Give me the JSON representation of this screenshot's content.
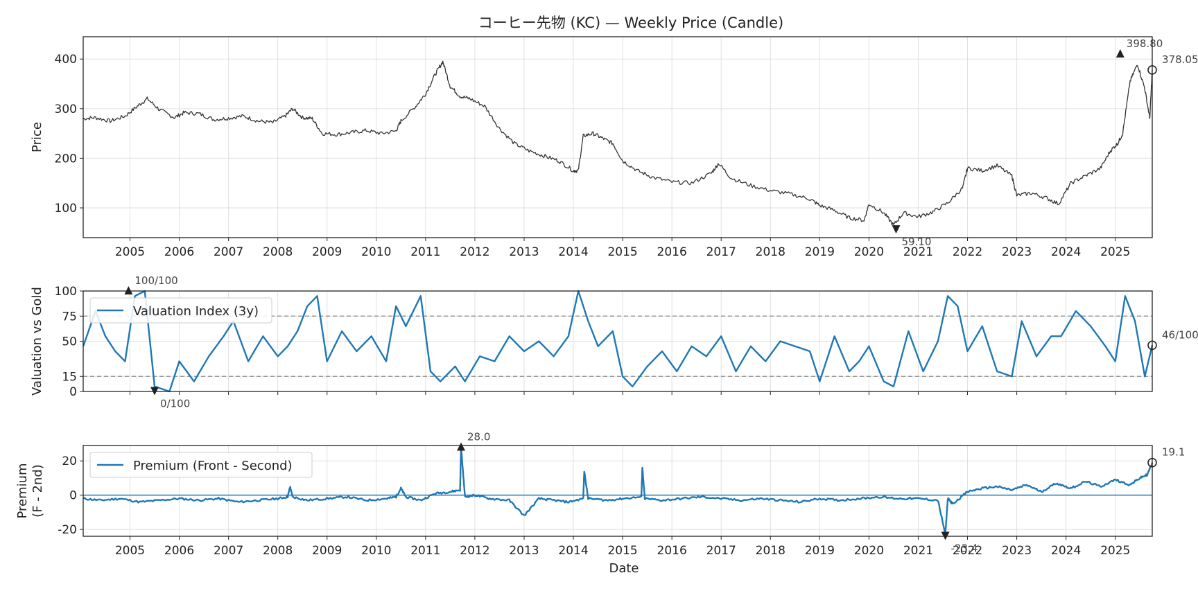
{
  "colors": {
    "price": "#333333",
    "blue": "#1f77b4",
    "grid": "#e0e0e0",
    "ref": "#999999",
    "marker": "#222222"
  },
  "chart_data": [
    {
      "type": "line",
      "title": "コーヒー先物 (KC) — Weekly Price (Candle)",
      "ylabel": "Price",
      "ylim": [
        40,
        445
      ],
      "yticks": [
        100,
        200,
        300,
        400
      ],
      "xlim": [
        2004.05,
        2025.75
      ],
      "xticks": [
        "2005",
        "2006",
        "2007",
        "2008",
        "2009",
        "2010",
        "2011",
        "2012",
        "2013",
        "2014",
        "2015",
        "2016",
        "2017",
        "2018",
        "2019",
        "2020",
        "2021",
        "2022",
        "2023",
        "2024",
        "2025"
      ],
      "grid": true,
      "series": [
        {
          "x": [
            2004.05,
            2004.3,
            2004.6,
            2004.9,
            2005.15,
            2005.35,
            2005.6,
            2005.9,
            2006.1,
            2006.4,
            2006.7,
            2007.0,
            2007.3,
            2007.6,
            2007.9,
            2008.15,
            2008.3,
            2008.5,
            2008.7,
            2008.9,
            2009.2,
            2009.5,
            2009.8,
            2010.1,
            2010.4,
            2010.5,
            2010.8,
            2011.0,
            2011.2,
            2011.35,
            2011.5,
            2011.7,
            2011.9,
            2012.2,
            2012.5,
            2012.8,
            2013.1,
            2013.4,
            2013.7,
            2014.0,
            2014.1,
            2014.2,
            2014.4,
            2014.6,
            2014.8,
            2015.0,
            2015.3,
            2015.6,
            2016.0,
            2016.4,
            2016.8,
            2016.95,
            2017.2,
            2017.6,
            2018.0,
            2018.4,
            2018.8,
            2019.0,
            2019.3,
            2019.6,
            2019.9,
            2020.0,
            2020.3,
            2020.5,
            2020.7,
            2021.0,
            2021.3,
            2021.6,
            2021.9,
            2022.0,
            2022.3,
            2022.6,
            2022.9,
            2023.0,
            2023.3,
            2023.6,
            2023.85,
            2024.1,
            2024.4,
            2024.7,
            2024.9,
            2025.05,
            2025.15,
            2025.3,
            2025.45,
            2025.6,
            2025.7,
            2025.75
          ],
          "y": [
            280,
            282,
            275,
            285,
            305,
            320,
            298,
            282,
            292,
            290,
            278,
            281,
            285,
            275,
            272,
            285,
            300,
            282,
            280,
            250,
            248,
            252,
            256,
            250,
            255,
            275,
            305,
            330,
            370,
            395,
            345,
            325,
            320,
            305,
            260,
            230,
            215,
            205,
            195,
            175,
            175,
            245,
            250,
            240,
            230,
            195,
            175,
            162,
            152,
            150,
            170,
            190,
            160,
            145,
            135,
            128,
            118,
            105,
            95,
            80,
            75,
            108,
            90,
            65,
            90,
            82,
            92,
            110,
            140,
            180,
            175,
            185,
            165,
            125,
            130,
            120,
            108,
            150,
            165,
            180,
            215,
            230,
            250,
            355,
            390,
            340,
            280,
            378
          ]
        }
      ],
      "annotations": [
        {
          "label": "398.80",
          "x": 2025.1,
          "y": 410,
          "marker": "max"
        },
        {
          "label": "59.10",
          "x": 2020.55,
          "y": 58,
          "marker": "min"
        },
        {
          "label": "378.05",
          "x": 2025.75,
          "y": 378,
          "marker": "last"
        }
      ]
    },
    {
      "type": "line",
      "ylabel": "Valuation vs Gold",
      "ylim": [
        0,
        100
      ],
      "yticks": [
        0,
        15,
        50,
        75,
        100
      ],
      "reference_lines": [
        15,
        75
      ],
      "legend": "top-left",
      "series": [
        {
          "name": "Valuation Index (3y)",
          "x": [
            2004.05,
            2004.3,
            2004.5,
            2004.7,
            2004.9,
            2005.1,
            2005.3,
            2005.5,
            2005.8,
            2006.0,
            2006.3,
            2006.6,
            2006.9,
            2007.1,
            2007.4,
            2007.7,
            2008.0,
            2008.2,
            2008.4,
            2008.6,
            2008.8,
            2009.0,
            2009.3,
            2009.6,
            2009.9,
            2010.2,
            2010.4,
            2010.6,
            2010.9,
            2011.1,
            2011.3,
            2011.6,
            2011.8,
            2012.1,
            2012.4,
            2012.7,
            2013.0,
            2013.3,
            2013.6,
            2013.9,
            2014.1,
            2014.3,
            2014.5,
            2014.8,
            2015.0,
            2015.2,
            2015.5,
            2015.8,
            2016.1,
            2016.4,
            2016.7,
            2017.0,
            2017.3,
            2017.6,
            2017.9,
            2018.2,
            2018.5,
            2018.8,
            2019.0,
            2019.3,
            2019.6,
            2019.8,
            2020.0,
            2020.3,
            2020.5,
            2020.8,
            2021.1,
            2021.4,
            2021.6,
            2021.8,
            2022.0,
            2022.3,
            2022.6,
            2022.9,
            2023.1,
            2023.4,
            2023.7,
            2023.9,
            2024.2,
            2024.5,
            2024.8,
            2025.0,
            2025.2,
            2025.4,
            2025.6,
            2025.75
          ],
          "y": [
            45,
            80,
            55,
            40,
            30,
            95,
            100,
            5,
            0,
            30,
            10,
            35,
            55,
            70,
            30,
            55,
            35,
            45,
            60,
            85,
            95,
            30,
            60,
            40,
            55,
            30,
            85,
            65,
            95,
            20,
            10,
            25,
            10,
            35,
            30,
            55,
            40,
            50,
            35,
            55,
            100,
            70,
            45,
            60,
            15,
            5,
            25,
            40,
            20,
            45,
            35,
            55,
            20,
            45,
            30,
            50,
            45,
            40,
            10,
            55,
            20,
            30,
            45,
            10,
            5,
            60,
            20,
            50,
            95,
            85,
            40,
            65,
            20,
            15,
            70,
            35,
            55,
            55,
            80,
            65,
            45,
            30,
            95,
            70,
            15,
            46
          ]
        }
      ],
      "annotations": [
        {
          "label": "100/100",
          "x": 2004.97,
          "y": 100,
          "marker": "max"
        },
        {
          "label": "0/100",
          "x": 2005.5,
          "y": 1,
          "marker": "min"
        },
        {
          "label": "46/100",
          "x": 2025.75,
          "y": 46,
          "marker": "last"
        }
      ]
    },
    {
      "type": "line",
      "xlabel": "Date",
      "ylabel": "Premium",
      "ylabel2": "(F - 2nd)",
      "ylim": [
        -24,
        29
      ],
      "yticks": [
        -20,
        0,
        20
      ],
      "xticks": [
        "2005",
        "2006",
        "2007",
        "2008",
        "2009",
        "2010",
        "2011",
        "2012",
        "2013",
        "2014",
        "2015",
        "2016",
        "2017",
        "2018",
        "2019",
        "2020",
        "2021",
        "2022",
        "2023",
        "2024",
        "2025"
      ],
      "reference_lines": [
        0
      ],
      "legend": "top-left",
      "series": [
        {
          "name": "Premium (Front - Second)",
          "x": [
            2004.05,
            2004.4,
            2004.8,
            2005.2,
            2005.6,
            2006.0,
            2006.4,
            2006.8,
            2007.2,
            2007.6,
            2008.0,
            2008.2,
            2008.25,
            2008.3,
            2008.6,
            2009.0,
            2009.4,
            2009.8,
            2010.2,
            2010.4,
            2010.5,
            2010.6,
            2010.9,
            2011.2,
            2011.5,
            2011.7,
            2011.72,
            2011.8,
            2012.0,
            2012.3,
            2012.7,
            2013.0,
            2013.3,
            2013.6,
            2013.9,
            2014.2,
            2014.22,
            2014.3,
            2014.7,
            2015.0,
            2015.38,
            2015.4,
            2015.45,
            2015.8,
            2016.2,
            2016.6,
            2017.0,
            2017.4,
            2017.8,
            2018.2,
            2018.6,
            2019.0,
            2019.4,
            2019.8,
            2020.2,
            2020.6,
            2021.0,
            2021.4,
            2021.55,
            2021.6,
            2021.7,
            2022.0,
            2022.3,
            2022.6,
            2022.9,
            2023.2,
            2023.5,
            2023.8,
            2024.1,
            2024.4,
            2024.7,
            2025.0,
            2025.3,
            2025.5,
            2025.65,
            2025.75
          ],
          "y": [
            -2,
            -3,
            -2,
            -4,
            -3,
            -2,
            -3,
            -2,
            -4,
            -3,
            -2,
            -1,
            5,
            -1,
            -3,
            -2,
            -1,
            -3,
            -2,
            -1,
            4,
            -1,
            -3,
            1,
            2,
            3,
            28,
            -1,
            0,
            -2,
            -3,
            -12,
            -2,
            -3,
            -4,
            -2,
            14,
            -2,
            -3,
            -2,
            -1,
            16,
            -2,
            -3,
            -2,
            -1,
            -2,
            -3,
            -2,
            -3,
            -4,
            -2,
            -3,
            -2,
            -1,
            -2,
            -2,
            -3,
            -23,
            -2,
            -5,
            2,
            4,
            5,
            3,
            6,
            2,
            7,
            4,
            8,
            5,
            9,
            6,
            10,
            12,
            19
          ]
        }
      ],
      "annotations": [
        {
          "label": "28.0",
          "x": 2011.72,
          "y": 28,
          "marker": "max"
        },
        {
          "label": "-23.4",
          "x": 2021.55,
          "y": -23.4,
          "marker": "min"
        },
        {
          "label": "19.1",
          "x": 2025.75,
          "y": 19,
          "marker": "last"
        }
      ]
    }
  ]
}
